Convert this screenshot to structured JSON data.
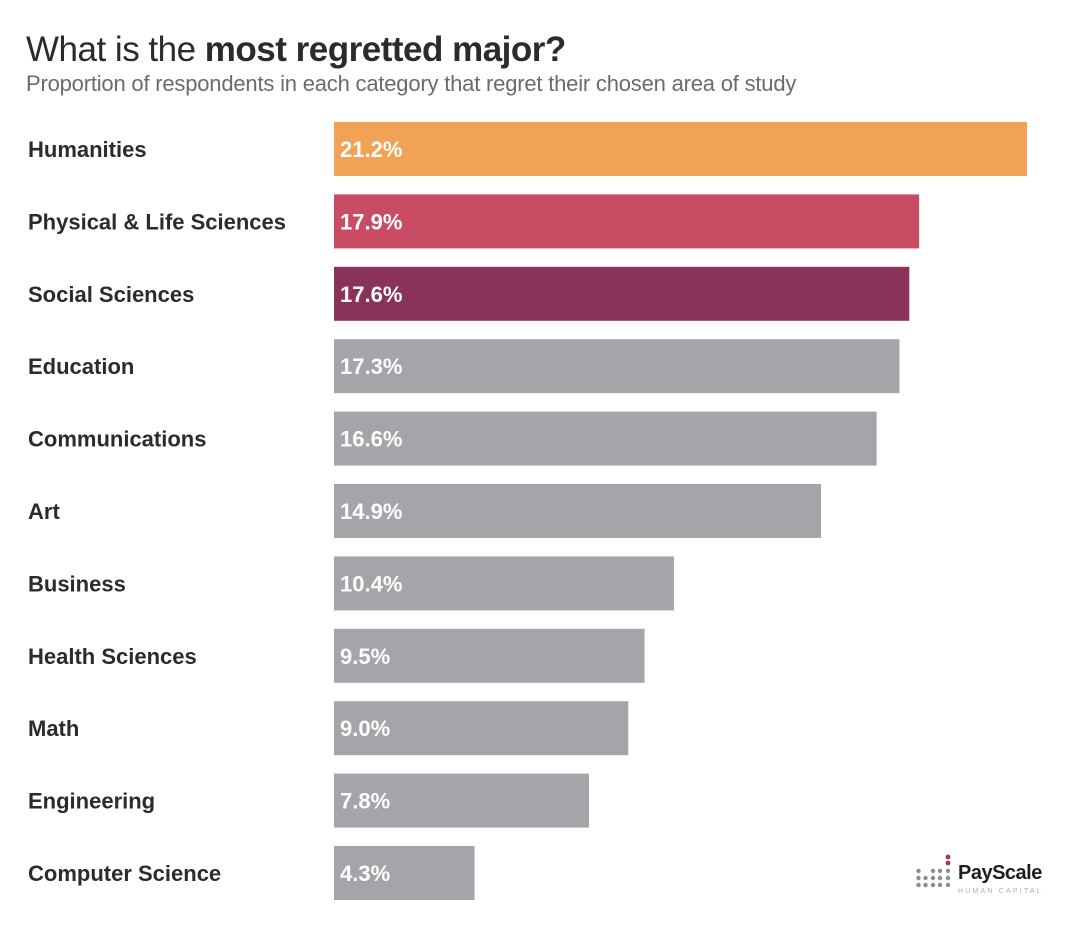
{
  "header": {
    "title_prefix": "What is the ",
    "title_bold": "most regretted major?",
    "subtitle": "Proportion of respondents in each category that regret their chosen area of study"
  },
  "logo": {
    "name": "PayScale",
    "tagline": "HUMAN CAPITAL"
  },
  "chart_data": {
    "type": "bar",
    "orientation": "horizontal",
    "title": "What is the most regretted major?",
    "subtitle": "Proportion of respondents in each category that regret their chosen area of study",
    "xlabel": "",
    "ylabel": "",
    "xlim": [
      0,
      21.2
    ],
    "grid": false,
    "legend": "none",
    "categories": [
      "Humanities",
      "Physical & Life Sciences",
      "Social Sciences",
      "Education",
      "Communications",
      "Art",
      "Business",
      "Health Sciences",
      "Math",
      "Engineering",
      "Computer Science"
    ],
    "values": [
      21.2,
      17.9,
      17.6,
      17.3,
      16.6,
      14.9,
      10.4,
      9.5,
      9.0,
      7.8,
      4.3
    ],
    "value_labels": [
      "21.2%",
      "17.9%",
      "17.6%",
      "17.3%",
      "16.6%",
      "14.9%",
      "10.4%",
      "9.5%",
      "9.0%",
      "7.8%",
      "4.3%"
    ],
    "colors": [
      "#f2a255",
      "#c94c64",
      "#8a3358",
      "#a6a4a9",
      "#a6a4a9",
      "#a6a4a9",
      "#a6a4a9",
      "#a6a4a9",
      "#a6a4a9",
      "#a6a4a9",
      "#a6a4a9"
    ]
  }
}
